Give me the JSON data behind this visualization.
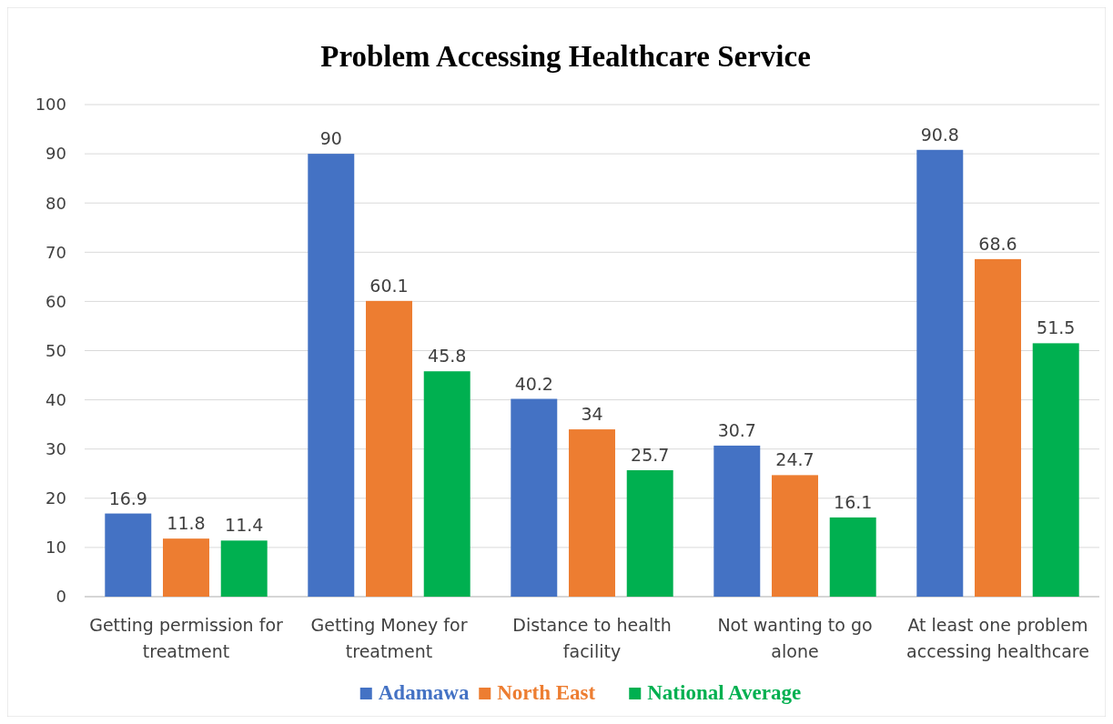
{
  "chart_data": {
    "type": "bar",
    "title": "Problem Accessing Healthcare Service",
    "categories": [
      "Getting permission for treatment",
      "Getting Money for treatment",
      "Distance to health facility",
      "Not wanting to go alone",
      "At least one problem accessing healthcare"
    ],
    "series": [
      {
        "name": "Adamawa",
        "color": "#4472c4",
        "values": [
          16.9,
          90,
          40.2,
          30.7,
          90.8
        ]
      },
      {
        "name": "North East",
        "color": "#ed7d31",
        "values": [
          11.8,
          60.1,
          34,
          24.7,
          68.6
        ]
      },
      {
        "name": "National Average",
        "color": "#00b050",
        "values": [
          11.4,
          45.8,
          25.7,
          16.1,
          51.5
        ]
      }
    ],
    "ylim": [
      0,
      100
    ],
    "yticks": [
      0,
      10,
      20,
      30,
      40,
      50,
      60,
      70,
      80,
      90,
      100
    ],
    "grid": "y",
    "legend": "bottom",
    "data_labels": true
  }
}
